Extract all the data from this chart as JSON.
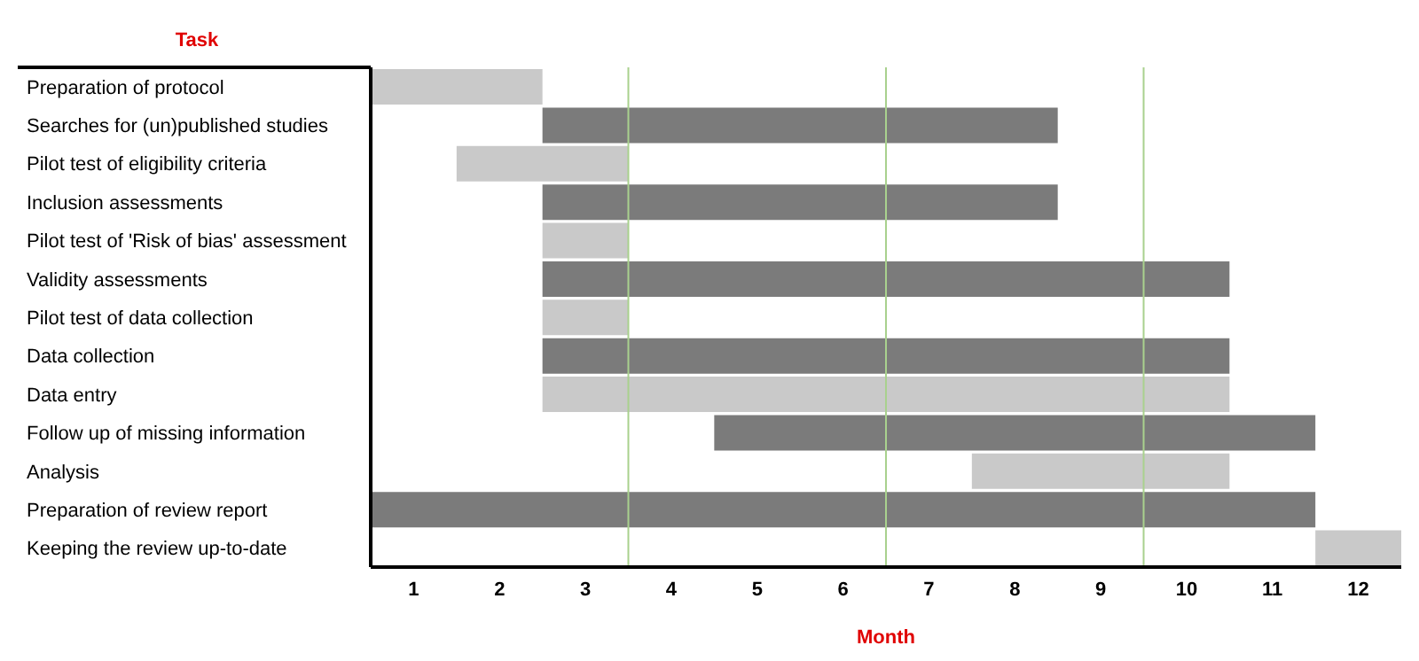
{
  "chart_data": {
    "type": "bar",
    "orientation": "horizontal",
    "ylabel": "Task",
    "xlabel": "Month",
    "categories": [
      "Preparation of protocol",
      "Searches for (un)published studies",
      "Pilot test of eligibility criteria",
      "Inclusion assessments",
      "Pilot test of 'Risk of bias' assessment",
      "Validity assessments",
      "Pilot test of data collection",
      "Data collection",
      "Data entry",
      "Follow up of missing information",
      "Analysis",
      "Preparation of review report",
      "Keeping the review up-to-date"
    ],
    "base": [
      0.5,
      2.5,
      1.5,
      2.5,
      2.5,
      2.5,
      2.5,
      2.5,
      2.5,
      4.5,
      7.5,
      0.5,
      11.5
    ],
    "values": [
      2,
      6,
      2,
      6,
      1,
      8,
      1,
      8,
      8,
      7,
      3,
      11,
      1
    ],
    "colors": [
      "#c9c9c9",
      "#7b7b7b",
      "#c9c9c9",
      "#7b7b7b",
      "#c9c9c9",
      "#7b7b7b",
      "#c9c9c9",
      "#7b7b7b",
      "#c9c9c9",
      "#7b7b7b",
      "#c9c9c9",
      "#7b7b7b",
      "#c9c9c9"
    ],
    "xlim": [
      0.5,
      12.5
    ],
    "xticks": [
      1,
      2,
      3,
      4,
      5,
      6,
      7,
      8,
      9,
      10,
      11,
      12
    ],
    "ref_lines": [
      {
        "axis": "x",
        "value": 3.5,
        "color": "#a9d18e"
      },
      {
        "axis": "x",
        "value": 6.5,
        "color": "#a9d18e"
      },
      {
        "axis": "x",
        "value": 9.5,
        "color": "#a9d18e"
      }
    ]
  }
}
